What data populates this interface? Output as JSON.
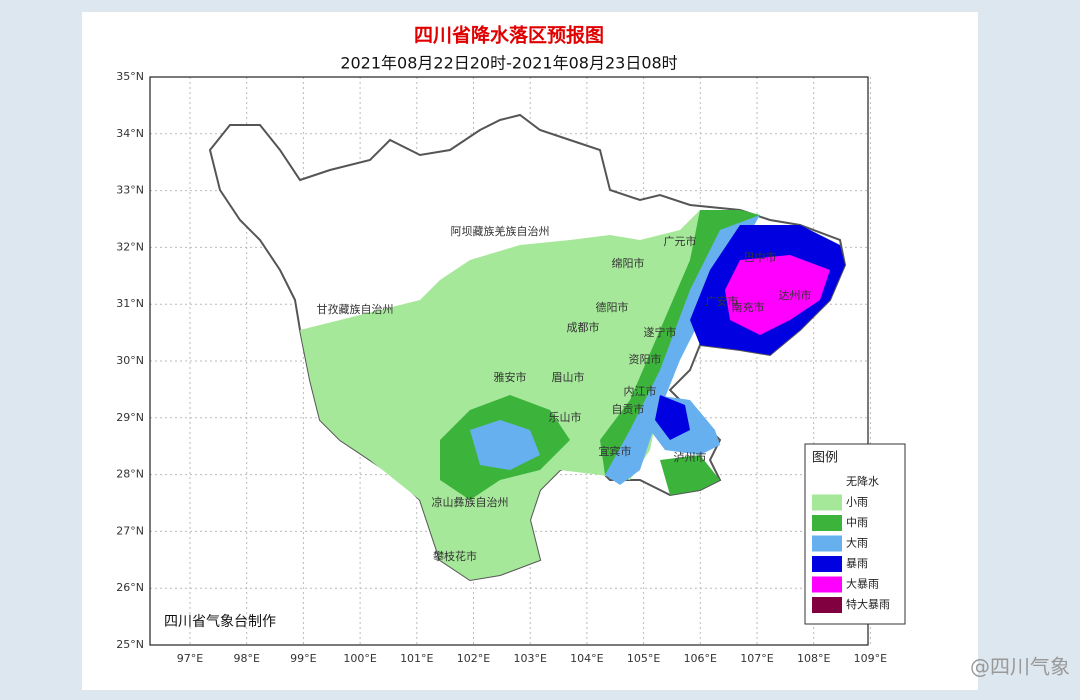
{
  "title": "四川省降水落区预报图",
  "subtitle": "2021年08月22日20时-2021年08月23日08时",
  "latitude_labels": [
    "35°N",
    "34°N",
    "33°N",
    "32°N",
    "31°N",
    "30°N",
    "29°N",
    "28°N",
    "27°N",
    "26°N",
    "25°N"
  ],
  "longitude_labels": [
    "97°E",
    "98°E",
    "99°E",
    "100°E",
    "101°E",
    "102°E",
    "103°E",
    "104°E",
    "105°E",
    "106°E",
    "107°E",
    "108°E",
    "109°E"
  ],
  "places": [
    "阿坝藏族羌族自治州",
    "广元市",
    "巴中市",
    "绵阳市",
    "达州市",
    "甘孜藏族自治州",
    "德阳市",
    "南充市",
    "广安市",
    "成都市",
    "遂宁市",
    "资阳市",
    "雅安市",
    "眉山市",
    "内江市",
    "乐山市",
    "自贡市",
    "宜宾市",
    "泸州市",
    "凉山彝族自治州",
    "攀枝花市"
  ],
  "legend": {
    "title": "图例",
    "items": [
      {
        "label": "无降水",
        "color": "#ffffff"
      },
      {
        "label": "小雨",
        "color": "#a6e89a"
      },
      {
        "label": "中雨",
        "color": "#3cb43c"
      },
      {
        "label": "大雨",
        "color": "#66b0ef"
      },
      {
        "label": "暴雨",
        "color": "#0000e0"
      },
      {
        "label": "大暴雨",
        "color": "#ff00ff"
      },
      {
        "label": "特大暴雨",
        "color": "#800040"
      }
    ]
  },
  "credit": "四川省气象台制作",
  "watermark": "@四川气象"
}
